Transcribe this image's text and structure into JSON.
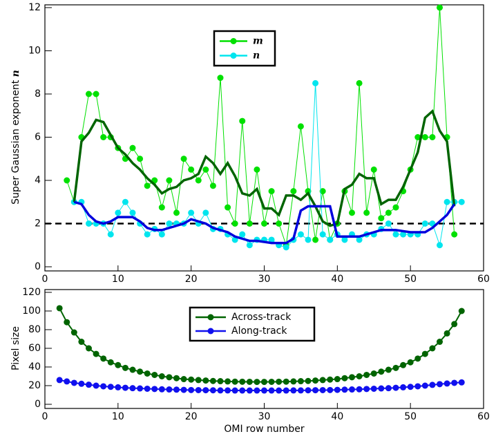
{
  "chart_data": [
    {
      "type": "line",
      "ylabel": "Super Gaussian exponent",
      "ylabel_symbol": "n",
      "xlim": [
        0,
        60
      ],
      "xticks": [
        0,
        10,
        20,
        30,
        40,
        50,
        60
      ],
      "ylim": [
        0,
        12
      ],
      "yticks": [
        0,
        2,
        4,
        6,
        8,
        10,
        12
      ],
      "reference_line": {
        "y": 2,
        "color": "#000000",
        "style": "dashed"
      },
      "legend": "top center",
      "series": [
        {
          "name": "m",
          "color": "#00e000",
          "markers": true,
          "linewidth": 1,
          "x": [
            3,
            4,
            5,
            6,
            7,
            8,
            9,
            10,
            11,
            12,
            13,
            14,
            15,
            16,
            17,
            18,
            19,
            20,
            21,
            22,
            23,
            24,
            25,
            26,
            27,
            28,
            29,
            30,
            31,
            32,
            33,
            34,
            35,
            36,
            37,
            38,
            39,
            40,
            41,
            42,
            43,
            44,
            45,
            46,
            47,
            48,
            49,
            50,
            51,
            52,
            53,
            54,
            55,
            56
          ],
          "values": [
            4.0,
            3.0,
            6.0,
            8.0,
            8.0,
            6.0,
            6.0,
            5.5,
            5.0,
            5.5,
            5.0,
            3.75,
            4.0,
            2.75,
            4.0,
            2.5,
            5.0,
            4.5,
            4.0,
            4.5,
            3.75,
            8.75,
            2.75,
            2.0,
            6.75,
            2.0,
            4.5,
            2.0,
            3.5,
            2.0,
            1.0,
            3.5,
            6.5,
            3.5,
            1.25,
            3.5,
            1.25,
            2.0,
            3.5,
            2.5,
            8.5,
            2.5,
            4.5,
            2.25,
            2.5,
            2.75,
            3.5,
            4.5,
            6.0,
            6.0,
            6.0,
            12.0,
            6.0,
            1.5
          ]
        },
        {
          "name": "n",
          "color": "#00e5ee",
          "markers": true,
          "linewidth": 1,
          "x": [
            4,
            5,
            6,
            7,
            8,
            9,
            10,
            11,
            12,
            13,
            14,
            15,
            16,
            17,
            18,
            19,
            20,
            21,
            22,
            23,
            24,
            25,
            26,
            27,
            28,
            29,
            30,
            31,
            32,
            33,
            34,
            35,
            36,
            37,
            38,
            39,
            40,
            41,
            42,
            43,
            44,
            45,
            46,
            47,
            48,
            49,
            50,
            51,
            52,
            53,
            54,
            55,
            56,
            57
          ],
          "values": [
            3.0,
            3.0,
            2.0,
            2.0,
            2.0,
            1.5,
            2.5,
            3.0,
            2.5,
            2.0,
            1.5,
            1.75,
            1.5,
            2.0,
            2.0,
            2.0,
            2.5,
            2.0,
            2.5,
            1.75,
            1.75,
            1.5,
            1.25,
            1.5,
            1.0,
            1.25,
            1.25,
            1.25,
            1.0,
            0.9,
            1.25,
            1.5,
            1.25,
            8.5,
            1.5,
            1.25,
            1.5,
            1.25,
            1.5,
            1.25,
            1.5,
            1.5,
            1.75,
            2.0,
            1.5,
            1.5,
            1.5,
            1.5,
            2.0,
            2.0,
            1.0,
            3.0,
            3.0,
            3.0
          ]
        },
        {
          "color": "#006400",
          "markers": false,
          "linewidth": 3.5,
          "x": [
            4,
            5,
            6,
            7,
            8,
            9,
            10,
            11,
            12,
            13,
            14,
            15,
            16,
            17,
            18,
            19,
            20,
            21,
            22,
            23,
            24,
            25,
            26,
            27,
            28,
            29,
            30,
            31,
            32,
            33,
            34,
            35,
            36,
            37,
            38,
            39,
            40,
            41,
            42,
            43,
            44,
            45,
            46,
            47,
            48,
            49,
            50,
            51,
            52,
            53,
            54,
            55,
            56
          ],
          "values": [
            3.0,
            5.8,
            6.2,
            6.8,
            6.7,
            6.1,
            5.5,
            5.2,
            4.8,
            4.5,
            4.1,
            3.8,
            3.4,
            3.6,
            3.7,
            4.0,
            4.1,
            4.3,
            5.1,
            4.8,
            4.3,
            4.8,
            4.2,
            3.4,
            3.3,
            3.6,
            2.7,
            2.7,
            2.4,
            3.3,
            3.3,
            3.1,
            3.4,
            2.8,
            2.1,
            1.9,
            2.0,
            3.6,
            3.8,
            4.3,
            4.1,
            4.1,
            2.9,
            3.1,
            3.1,
            3.7,
            4.5,
            5.3,
            6.9,
            7.2,
            6.3,
            5.8,
            2.8
          ]
        },
        {
          "color": "#0000dd",
          "markers": false,
          "linewidth": 3.5,
          "x": [
            4,
            5,
            6,
            7,
            8,
            9,
            10,
            11,
            12,
            13,
            14,
            15,
            16,
            17,
            18,
            19,
            20,
            21,
            22,
            23,
            24,
            25,
            26,
            27,
            28,
            29,
            30,
            31,
            32,
            33,
            34,
            35,
            36,
            37,
            38,
            39,
            40,
            41,
            42,
            43,
            44,
            45,
            46,
            47,
            48,
            49,
            50,
            51,
            52,
            53,
            54,
            55,
            56
          ],
          "values": [
            3.0,
            2.9,
            2.4,
            2.1,
            2.0,
            2.1,
            2.3,
            2.3,
            2.3,
            2.1,
            1.8,
            1.7,
            1.7,
            1.8,
            1.9,
            2.0,
            2.2,
            2.1,
            2.0,
            1.8,
            1.7,
            1.6,
            1.4,
            1.3,
            1.2,
            1.2,
            1.15,
            1.1,
            1.1,
            1.1,
            1.3,
            2.6,
            2.8,
            2.8,
            2.8,
            2.8,
            1.4,
            1.4,
            1.4,
            1.4,
            1.5,
            1.6,
            1.7,
            1.7,
            1.7,
            1.65,
            1.6,
            1.6,
            1.6,
            1.8,
            2.1,
            2.4,
            2.9
          ]
        }
      ]
    },
    {
      "type": "line",
      "ylabel": "Pixel size",
      "xlabel": "OMI row number",
      "xlim": [
        0,
        60
      ],
      "xticks": [
        0,
        10,
        20,
        30,
        40,
        50,
        60
      ],
      "ylim": [
        0,
        120
      ],
      "yticks": [
        0,
        20,
        40,
        60,
        80,
        100,
        120
      ],
      "legend": "top center",
      "series": [
        {
          "name": "Across-track",
          "color": "#006400",
          "markers": true,
          "linewidth": 2,
          "x": [
            2,
            3,
            4,
            5,
            6,
            7,
            8,
            9,
            10,
            11,
            12,
            13,
            14,
            15,
            16,
            17,
            18,
            19,
            20,
            21,
            22,
            23,
            24,
            25,
            26,
            27,
            28,
            29,
            30,
            31,
            32,
            33,
            34,
            35,
            36,
            37,
            38,
            39,
            40,
            41,
            42,
            43,
            44,
            45,
            46,
            47,
            48,
            49,
            50,
            51,
            52,
            53,
            54,
            55,
            56,
            57
          ],
          "values": [
            103,
            88,
            77,
            67,
            60,
            54,
            49,
            45,
            42,
            39,
            37,
            35,
            33,
            31.5,
            30,
            29,
            28,
            27,
            26.5,
            26,
            25.5,
            25,
            24.8,
            24.5,
            24.3,
            24.2,
            24.1,
            24,
            24,
            24.1,
            24.2,
            24.3,
            24.5,
            24.8,
            25,
            25.5,
            26,
            26.5,
            27,
            28,
            29,
            30,
            31.5,
            33,
            35,
            37,
            39,
            42,
            45,
            49,
            54,
            60,
            67,
            76,
            86,
            100
          ]
        },
        {
          "name": "Along-track",
          "color": "#1010ee",
          "markers": true,
          "linewidth": 2,
          "x": [
            2,
            3,
            4,
            5,
            6,
            7,
            8,
            9,
            10,
            11,
            12,
            13,
            14,
            15,
            16,
            17,
            18,
            19,
            20,
            21,
            22,
            23,
            24,
            25,
            26,
            27,
            28,
            29,
            30,
            31,
            32,
            33,
            34,
            35,
            36,
            37,
            38,
            39,
            40,
            41,
            42,
            43,
            44,
            45,
            46,
            47,
            48,
            49,
            50,
            51,
            52,
            53,
            54,
            55,
            56,
            57
          ],
          "values": [
            26,
            24.5,
            23,
            22,
            21,
            20,
            19.3,
            18.7,
            18.2,
            17.7,
            17.3,
            17,
            16.7,
            16.4,
            16.1,
            15.9,
            15.7,
            15.5,
            15.3,
            15.2,
            15.1,
            15,
            14.9,
            14.9,
            14.8,
            14.8,
            14.8,
            14.8,
            14.8,
            14.8,
            14.8,
            14.8,
            14.9,
            14.9,
            15,
            15.1,
            15.2,
            15.3,
            15.5,
            15.7,
            15.9,
            16.1,
            16.4,
            16.7,
            17,
            17.3,
            17.7,
            18.2,
            18.7,
            19.3,
            20,
            20.8,
            21.6,
            22.3,
            23,
            23.5
          ]
        }
      ]
    }
  ]
}
